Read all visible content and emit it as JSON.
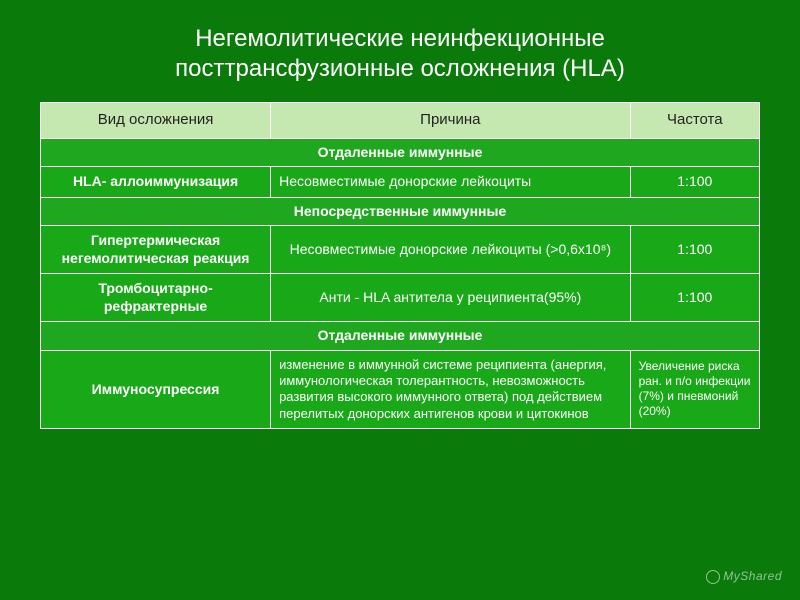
{
  "title_line1": "Негемолитические неинфекционные",
  "title_line2": "посттрансфузионные осложнения (HLA)",
  "headers": {
    "type": "Вид осложнения",
    "cause": "Причина",
    "freq": "Частота"
  },
  "col_widths": {
    "type": "32%",
    "cause": "50%",
    "freq": "18%"
  },
  "sections": {
    "s1": "Отдаленные иммунные",
    "s2": "Непосредственные иммунные",
    "s3": "Отдаленные иммунные"
  },
  "rows": {
    "r1": {
      "type": "HLA- аллоиммунизация",
      "cause": "Несовместимые донорские лейкоциты",
      "freq": "1:100"
    },
    "r2": {
      "type": "Гипертермическая негемолитическая реакция",
      "cause": "Несовместимые донорские лейкоциты (>0,6х10⁸)",
      "freq": "1:100"
    },
    "r3": {
      "type": "Тромбоцитарно-рефрактерные",
      "cause": "Анти - HLA антитела у реципиента(95%)",
      "freq": "1:100"
    },
    "r4": {
      "type": "Иммуносупрессия",
      "cause": "изменение в иммунной системе реципиента (анергия, иммунологическая толерантность, невозможность развития высокого иммунного ответа) под действием перелитых донорских антигенов крови и цитокинов",
      "freq": "Увеличение риска ран. и п/о инфекции (7%) и пневмоний (20%)"
    }
  },
  "watermark": "MyShared",
  "colors": {
    "slide_bg": "#0a7a0a",
    "header_bg": "#c4e8b0",
    "header_text": "#222222",
    "section_bg": "#1fa81f",
    "data_bg": "#18a818",
    "border": "#ffffff",
    "text": "#ffffff"
  },
  "fonts": {
    "title_size": 24,
    "header_size": 15,
    "cell_size": 14
  }
}
